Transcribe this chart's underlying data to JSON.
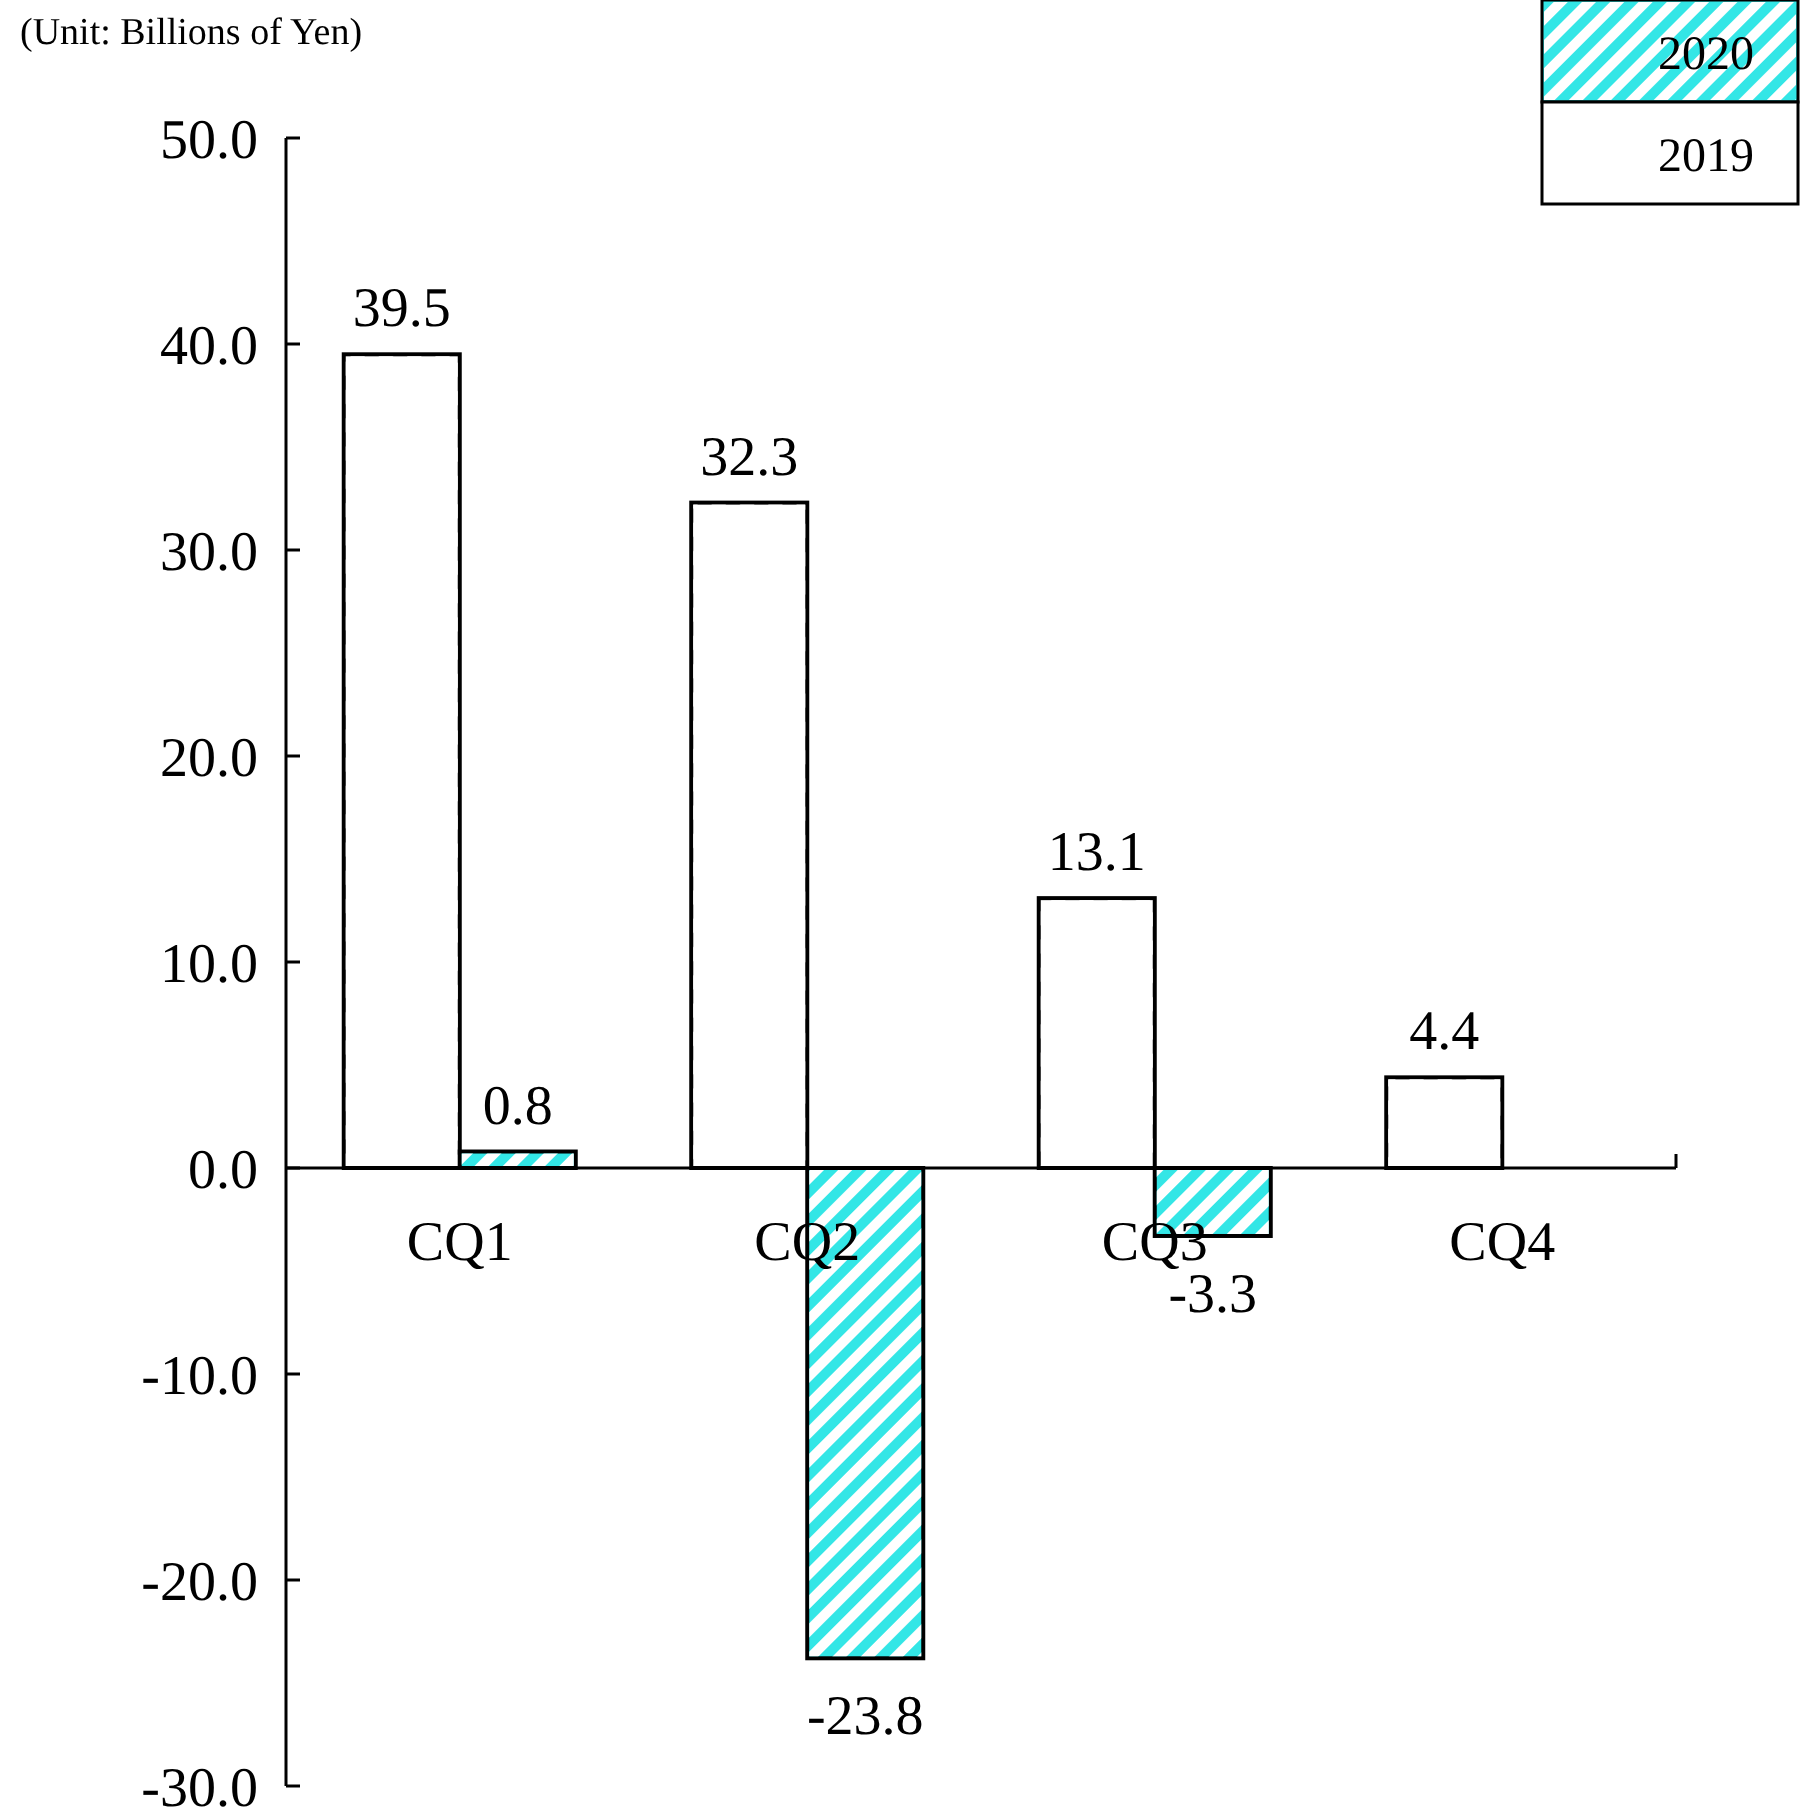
{
  "chart_data": {
    "type": "bar",
    "ylabel": "(Unit: Billions of Yen)",
    "categories": [
      "CQ1",
      "CQ2",
      "CQ3",
      "CQ4"
    ],
    "series": [
      {
        "name": "2019",
        "color": "#ffffff",
        "values": [
          39.5,
          32.3,
          13.1,
          4.4
        ]
      },
      {
        "name": "2020",
        "color": "#33e6e6",
        "values": [
          0.8,
          -23.8,
          -3.3,
          null
        ]
      }
    ],
    "ylim": [
      -30,
      50
    ],
    "yticks": [
      {
        "value": 50,
        "label": "50.0"
      },
      {
        "value": 40,
        "label": "40.0"
      },
      {
        "value": 30,
        "label": "30.0"
      },
      {
        "value": 20,
        "label": "20.0"
      },
      {
        "value": 10,
        "label": "10.0"
      },
      {
        "value": 0,
        "label": "0.0"
      },
      {
        "value": -10,
        "label": "-10.0"
      },
      {
        "value": -20,
        "label": "-20.0"
      },
      {
        "value": -30,
        "label": "-30.0"
      }
    ],
    "data_labels": true,
    "legend": "top right",
    "grid": false
  }
}
